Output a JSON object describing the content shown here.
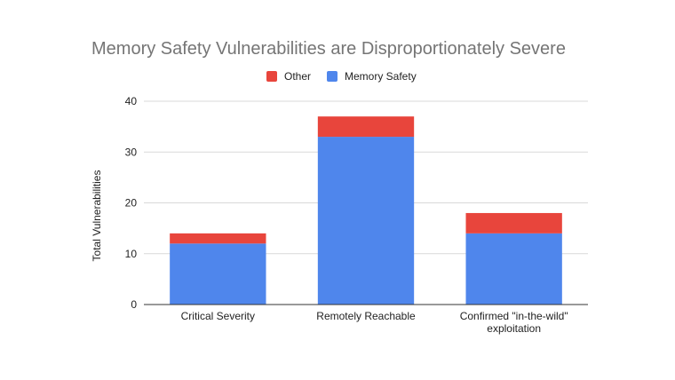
{
  "chart_data": {
    "type": "bar",
    "stacked": true,
    "title": "Memory Safety Vulnerabilities are Disproportionately Severe",
    "xlabel": "",
    "ylabel": "Total Vulnerabilities",
    "categories": [
      [
        "Critical Severity"
      ],
      [
        "Remotely Reachable"
      ],
      [
        "Confirmed \"in-the-wild\"",
        "exploitation"
      ]
    ],
    "series": [
      {
        "name": "Memory Safety",
        "color": "#4f86ec",
        "values": [
          12,
          33,
          14
        ]
      },
      {
        "name": "Other",
        "color": "#e8453c",
        "values": [
          2,
          4,
          4
        ]
      }
    ],
    "legend_order": [
      "Other",
      "Memory Safety"
    ],
    "legend_position": "top-center",
    "ylim": [
      0,
      40
    ],
    "yticks": [
      0,
      10,
      20,
      30,
      40
    ],
    "grid": true
  }
}
